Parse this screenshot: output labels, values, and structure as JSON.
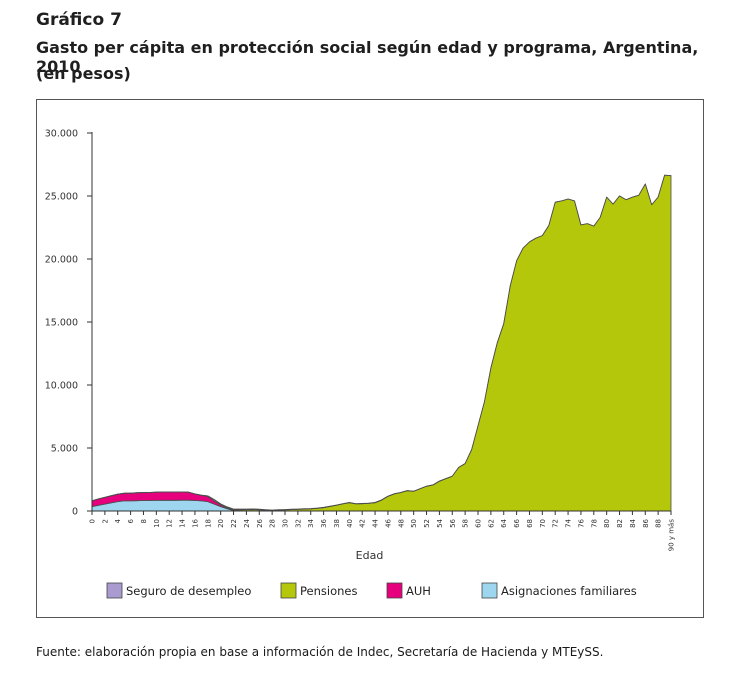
{
  "header": {
    "figure_number": "Gráfico 7",
    "title": "Gasto per cápita en protección social según edad y programa, Argentina, 2010",
    "units": "(en pesos)"
  },
  "source": "Fuente: elaboración propia en base a información de Indec, Secretaría de Hacienda y MTEySS.",
  "colors": {
    "seguro": "#a99bd0",
    "pensiones": "#b4c70b",
    "auh": "#e6007e",
    "asignaciones": "#9fd6ef",
    "stroke": "#4d4d4d"
  },
  "chart_data": {
    "type": "area",
    "stacked": true,
    "xlabel": "Edad",
    "ylabel": "",
    "ylim": [
      0,
      30000
    ],
    "y_ticks": [
      "0",
      "5.000",
      "10.000",
      "15.000",
      "20.000",
      "25.000",
      "30.000"
    ],
    "x_tick_labels": [
      "0",
      "2",
      "4",
      "6",
      "8",
      "10",
      "12",
      "14",
      "16",
      "18",
      "20",
      "22",
      "24",
      "26",
      "28",
      "30",
      "32",
      "34",
      "36",
      "38",
      "40",
      "42",
      "44",
      "46",
      "48",
      "50",
      "52",
      "54",
      "56",
      "58",
      "60",
      "62",
      "64",
      "66",
      "68",
      "70",
      "72",
      "74",
      "76",
      "78",
      "80",
      "82",
      "84",
      "86",
      "88",
      "90 y más"
    ],
    "legend": [
      "Seguro de desempleo",
      "Pensiones",
      "AUH",
      "Asignaciones familiares"
    ],
    "legend_position": "bottom",
    "grid": false,
    "x": [
      0,
      1,
      2,
      3,
      4,
      5,
      6,
      7,
      8,
      9,
      10,
      11,
      12,
      13,
      14,
      15,
      16,
      17,
      18,
      19,
      20,
      21,
      22,
      23,
      24,
      25,
      26,
      27,
      28,
      29,
      30,
      31,
      32,
      33,
      34,
      35,
      36,
      37,
      38,
      39,
      40,
      41,
      42,
      43,
      44,
      45,
      46,
      47,
      48,
      49,
      50,
      51,
      52,
      53,
      54,
      55,
      56,
      57,
      58,
      59,
      60,
      61,
      62,
      63,
      64,
      65,
      66,
      67,
      68,
      69,
      70,
      71,
      72,
      73,
      74,
      75,
      76,
      77,
      78,
      79,
      80,
      81,
      82,
      83,
      84,
      85,
      86,
      87,
      88,
      89,
      90
    ],
    "series": [
      {
        "name": "Asignaciones familiares",
        "values": [
          350,
          450,
          550,
          650,
          750,
          800,
          800,
          820,
          830,
          830,
          840,
          850,
          850,
          850,
          860,
          860,
          830,
          800,
          750,
          550,
          350,
          180,
          40,
          20,
          10,
          10,
          10,
          10,
          10,
          10,
          10,
          10,
          10,
          10,
          10,
          10,
          10,
          10,
          10,
          10,
          10,
          10,
          10,
          10,
          10,
          10,
          10,
          10,
          10,
          10,
          10,
          10,
          10,
          10,
          10,
          10,
          10,
          10,
          10,
          10,
          10,
          10,
          10,
          10,
          10,
          10,
          10,
          10,
          10,
          10,
          10,
          10,
          10,
          10,
          10,
          10,
          10,
          10,
          10,
          10,
          10,
          10,
          10,
          10,
          10,
          10,
          10,
          10,
          10,
          10,
          10
        ]
      },
      {
        "name": "AUH",
        "values": [
          450,
          500,
          530,
          560,
          580,
          600,
          610,
          620,
          630,
          640,
          650,
          650,
          650,
          650,
          640,
          630,
          520,
          450,
          400,
          250,
          120,
          50,
          5,
          0,
          0,
          0,
          0,
          0,
          0,
          0,
          0,
          0,
          0,
          0,
          0,
          0,
          0,
          0,
          0,
          0,
          0,
          0,
          0,
          0,
          0,
          0,
          0,
          0,
          0,
          0,
          0,
          0,
          0,
          0,
          0,
          0,
          0,
          0,
          0,
          0,
          0,
          0,
          0,
          0,
          0,
          0,
          0,
          0,
          0,
          0,
          0,
          0,
          0,
          0,
          0,
          0,
          0,
          0,
          0,
          0,
          0,
          0,
          0,
          0,
          0,
          0,
          0,
          0,
          0,
          0,
          0
        ]
      },
      {
        "name": "Pensiones",
        "values": [
          10,
          10,
          10,
          10,
          10,
          10,
          10,
          10,
          10,
          10,
          10,
          10,
          10,
          10,
          10,
          10,
          10,
          10,
          50,
          100,
          70,
          60,
          50,
          80,
          90,
          100,
          80,
          60,
          40,
          60,
          80,
          100,
          120,
          140,
          160,
          200,
          250,
          350,
          450,
          550,
          650,
          550,
          570,
          600,
          650,
          850,
          1150,
          1350,
          1450,
          1600,
          1550,
          1750,
          1950,
          2050,
          2350,
          2550,
          2750,
          3450,
          3750,
          4850,
          6750,
          8650,
          11350,
          13350,
          14850,
          17850,
          19850,
          20850,
          21350,
          21650,
          21850,
          22650,
          24500,
          24600,
          24750,
          24600,
          22700,
          22800,
          22600,
          23300,
          24900,
          24350,
          25000,
          24700,
          24900,
          25050,
          25950,
          24300,
          24900,
          26650,
          26600
        ]
      },
      {
        "name": "Seguro de desempleo",
        "values": [
          0,
          0,
          0,
          0,
          0,
          0,
          0,
          0,
          0,
          0,
          0,
          0,
          0,
          0,
          0,
          0,
          0,
          0,
          0,
          10,
          30,
          40,
          60,
          60,
          60,
          60,
          50,
          40,
          30,
          30,
          30,
          30,
          30,
          30,
          30,
          30,
          30,
          30,
          20,
          20,
          20,
          20,
          20,
          20,
          20,
          20,
          20,
          20,
          20,
          20,
          20,
          20,
          20,
          20,
          20,
          20,
          10,
          10,
          10,
          10,
          10,
          10,
          10,
          10,
          10,
          0,
          0,
          0,
          0,
          0,
          0,
          0,
          0,
          0,
          0,
          0,
          0,
          0,
          0,
          0,
          0,
          0,
          0,
          0,
          0,
          0,
          0,
          0,
          0,
          0,
          0
        ]
      }
    ]
  }
}
